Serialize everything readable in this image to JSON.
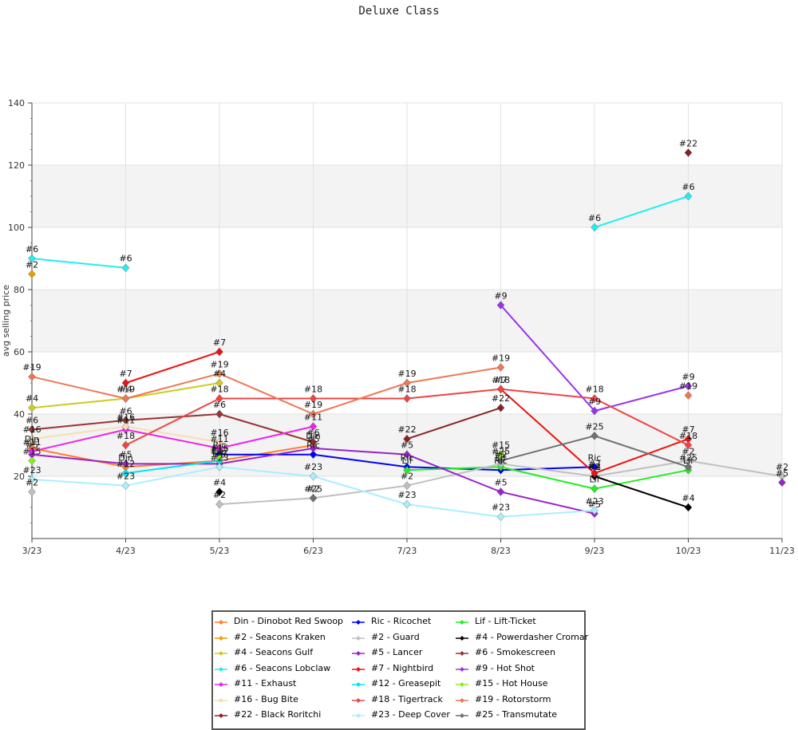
{
  "chart_data": {
    "type": "line",
    "title": "Deluxe Class",
    "xlabel": "",
    "ylabel": "avg selling price",
    "categories": [
      "3/23",
      "4/23",
      "5/23",
      "6/23",
      "7/23",
      "8/23",
      "9/23",
      "10/23",
      "11/23"
    ],
    "ylim": [
      0,
      140
    ],
    "yticks": [
      20,
      40,
      60,
      80,
      100,
      120,
      140
    ],
    "grid": true,
    "legend_position": "bottom",
    "series": [
      {
        "name": "Din - Dinobot Red Swoop",
        "short": "Din",
        "color": "#ff7f2a",
        "values": [
          29,
          23,
          25,
          30,
          null,
          null,
          null,
          null,
          null
        ]
      },
      {
        "name": "Ric - Ricochet",
        "short": "Ric",
        "color": "#0000ff",
        "values": [
          null,
          null,
          27,
          27,
          23,
          22,
          23,
          null,
          null
        ]
      },
      {
        "name": "Lif - Lift-Ticket",
        "short": "Lif",
        "color": "#22ee22",
        "values": [
          null,
          null,
          null,
          null,
          22,
          23,
          16,
          22,
          null
        ]
      },
      {
        "name": "#2 - Seacons Kraken",
        "short": "#2",
        "color": "#e8a000",
        "values": [
          85,
          null,
          null,
          null,
          null,
          null,
          null,
          null,
          null
        ]
      },
      {
        "name": "#2 - Guard",
        "short": "#2",
        "color": "#c0c0c0",
        "values": [
          15,
          null,
          11,
          13,
          17,
          24,
          20,
          25,
          20
        ]
      },
      {
        "name": "#4 - Powerdasher Cromar",
        "short": "#4",
        "color": "#000000",
        "values": [
          null,
          null,
          15,
          null,
          null,
          null,
          20,
          10,
          null
        ]
      },
      {
        "name": "#4 - Seacons Gulf",
        "short": "#4",
        "color": "#cccc22",
        "values": [
          42,
          45,
          50,
          null,
          null,
          null,
          null,
          null,
          null
        ]
      },
      {
        "name": "#5 - Lancer",
        "short": "#5",
        "color": "#9922cc",
        "values": [
          27,
          24,
          24,
          29,
          27,
          15,
          8,
          null,
          18
        ]
      },
      {
        "name": "#6 - Smokescreen",
        "short": "#6",
        "color": "#993333",
        "values": [
          35,
          38,
          40,
          31,
          null,
          null,
          null,
          null,
          null
        ]
      },
      {
        "name": "#6 - Seacons Lobclaw",
        "short": "#6",
        "color": "#22eeee",
        "values": [
          90,
          87,
          null,
          null,
          null,
          null,
          100,
          110,
          null
        ]
      },
      {
        "name": "#7 - Nightbird",
        "short": "#7",
        "color": "#ee1111",
        "values": [
          null,
          50,
          60,
          null,
          null,
          48,
          21,
          32,
          null
        ]
      },
      {
        "name": "#9 - Hot Shot",
        "short": "#9",
        "color": "#9933ee",
        "values": [
          null,
          null,
          null,
          null,
          null,
          75,
          41,
          49,
          null
        ]
      },
      {
        "name": "#11 - Exhaust",
        "short": "#11",
        "color": "#ee22ee",
        "values": [
          28,
          35,
          29,
          36,
          null,
          null,
          null,
          null,
          null
        ]
      },
      {
        "name": "#12 - Greasepit",
        "short": "#12",
        "color": "#00e5ee",
        "values": [
          null,
          21,
          25,
          null,
          null,
          null,
          null,
          null,
          null
        ]
      },
      {
        "name": "#15 - Hot House",
        "short": "#15",
        "color": "#88ee22",
        "values": [
          25,
          null,
          26,
          null,
          null,
          27,
          null,
          null,
          null
        ]
      },
      {
        "name": "#16 - Bug Bite",
        "short": "#16",
        "color": "#f5deb3",
        "values": [
          32,
          36,
          31,
          null,
          null,
          null,
          null,
          null,
          null
        ]
      },
      {
        "name": "#18 - Tigertrack",
        "short": "#18",
        "color": "#ee4444",
        "values": [
          null,
          30,
          45,
          45,
          45,
          48,
          45,
          30,
          null
        ]
      },
      {
        "name": "#19 - Rotorstorm",
        "short": "#19",
        "color": "#ee7755",
        "values": [
          52,
          45,
          53,
          40,
          50,
          55,
          null,
          46,
          null
        ]
      },
      {
        "name": "#22 - Black Roritchi",
        "short": "#22",
        "color": "#882222",
        "values": [
          null,
          null,
          null,
          null,
          32,
          42,
          null,
          124,
          null
        ]
      },
      {
        "name": "#23 - Deep Cover",
        "short": "#23",
        "color": "#aaeeff",
        "values": [
          19,
          17,
          23,
          20,
          11,
          7,
          9,
          null,
          null
        ]
      },
      {
        "name": "#25 - Transmutate",
        "short": "#25",
        "color": "#707070",
        "values": [
          null,
          null,
          null,
          13,
          null,
          25,
          33,
          23,
          null
        ]
      }
    ]
  }
}
